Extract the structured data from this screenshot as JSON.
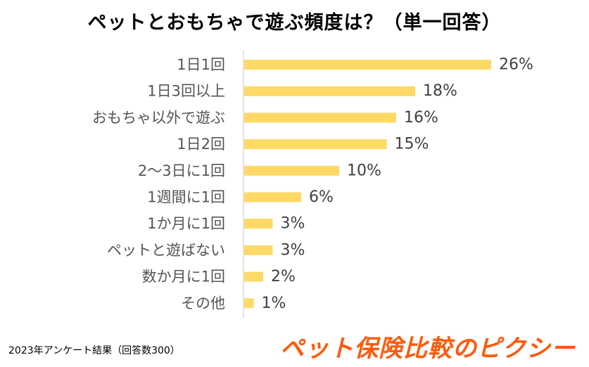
{
  "chart_data": {
    "type": "bar",
    "orientation": "horizontal",
    "title": "ペットとおもちゃで遊ぶ頻度は？（単一回答）",
    "categories": [
      "1日1回",
      "1日3回以上",
      "おもちゃ以外で遊ぶ",
      "1日2回",
      "2〜3日に1回",
      "1週間に1回",
      "1か月に1回",
      "ペットと遊ばない",
      "数か月に1回",
      "その他"
    ],
    "values": [
      26,
      18,
      16,
      15,
      10,
      6,
      3,
      3,
      2,
      1
    ],
    "value_labels": [
      "26%",
      "18%",
      "16%",
      "15%",
      "10%",
      "6%",
      "3%",
      "3%",
      "2%",
      "1%"
    ],
    "xlim": [
      0,
      26
    ],
    "bar_color": "#FFD966",
    "axis_color": "#D9D9D9",
    "grid": false
  },
  "footnote": "2023年アンケート結果（回答数300）",
  "brand": "ペット保険比較のピクシー"
}
